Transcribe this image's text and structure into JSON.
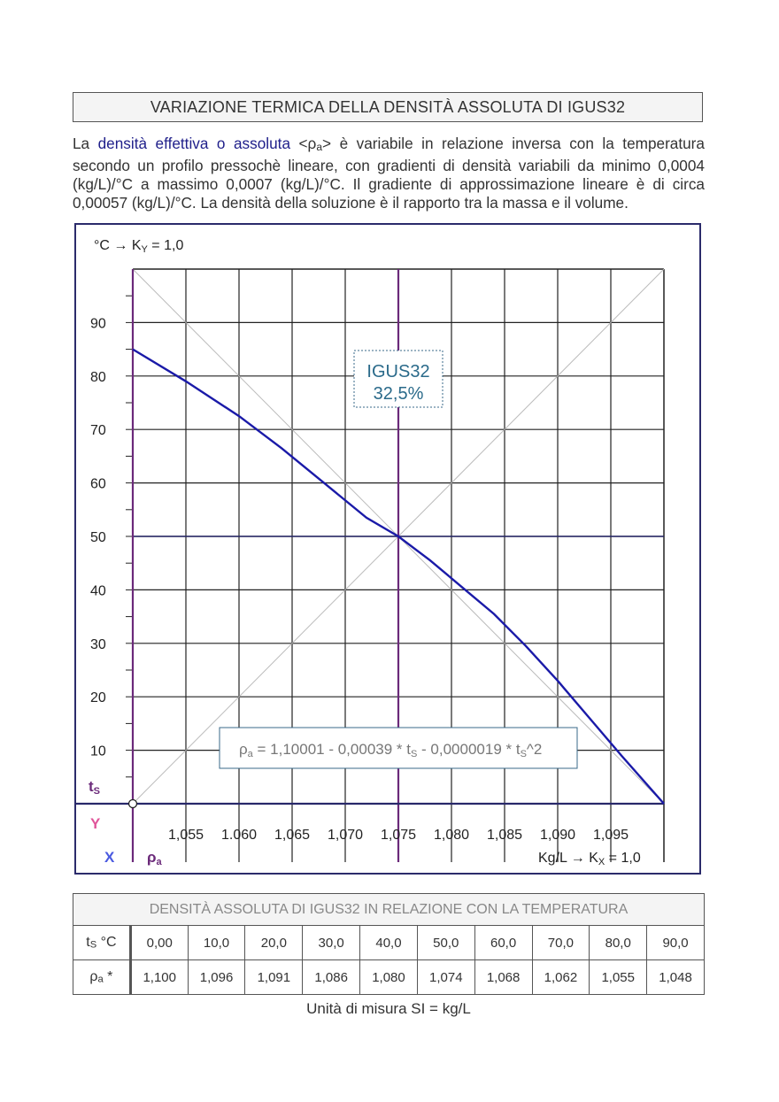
{
  "title": "VARIAZIONE TERMICA DELLA DENSITÀ ASSOLUTA DI IGUS32",
  "intro": {
    "p1": "La ",
    "highlight": "densità effettiva o assoluta",
    "p2": " <ρ",
    "p2_sub": "a",
    "p3": "> è variabile in relazione inversa con la temperatura secondo un profilo pressochè lineare, con gradienti di densità variabili da minimo 0,0004 (kg/L)/°C a massimo 0,0007 (kg/L)/°C. Il gradiente di approssimazione lineare è di circa 0,00057 (kg/L)/°C. La densità della soluzione è il rapporto tra la massa e il volume."
  },
  "chart_data": {
    "type": "line",
    "y_axis_header": "°C  →  K",
    "y_axis_header_sub": "Y",
    "y_axis_header_tail": " = 1,0",
    "x_axis_footer": "Kg/L  →  K",
    "x_axis_footer_sub": "X",
    "x_axis_footer_tail": " = 1,0",
    "y_label": "t",
    "y_label_sub": "S",
    "x_label": "ρ",
    "x_label_sub": "a",
    "corner_y": "Y",
    "corner_x": "X",
    "ylim": [
      0,
      100
    ],
    "xlim": [
      1.05,
      1.1
    ],
    "y_ticks": [
      10,
      20,
      30,
      40,
      50,
      60,
      70,
      80,
      90
    ],
    "x_ticks": [
      "1,055",
      "1.060",
      "1,065",
      "1,070",
      "1,075",
      "1,080",
      "1,085",
      "1,090",
      "1,095"
    ],
    "x_tick_values": [
      1.055,
      1.06,
      1.065,
      1.07,
      1.075,
      1.08,
      1.085,
      1.09,
      1.095
    ],
    "grid": true,
    "highlight_x": 1.075,
    "highlight_y": 50,
    "legend_box": {
      "line1": "IGUS32",
      "line2": "32,5%"
    },
    "formula": {
      "a": "ρ",
      "a_sub": "a",
      "b": " = 1,10001 - 0,00039 * t",
      "b_sub": "S",
      "c": " - 0,0000019 * t",
      "c_sub": "S",
      "d": "^2"
    },
    "series": [
      {
        "x": [
          1.05,
          1.055,
          1.06,
          1.064,
          1.068,
          1.072,
          1.075,
          1.078,
          1.081,
          1.084,
          1.087,
          1.09,
          1.093,
          1.096,
          1.1
        ],
        "y": [
          85,
          79,
          72.5,
          66.5,
          60,
          53.5,
          50,
          45.5,
          40.5,
          35.5,
          29.5,
          23,
          16,
          9,
          0
        ]
      }
    ],
    "colors": {
      "curve": "#1a1aa8",
      "purple": "#6b2a7a",
      "accent_y": "#e0559a",
      "accent_x": "#4a5ae0",
      "box_text": "#2a6a8a"
    }
  },
  "table": {
    "caption": "DENSITÀ ASSOLUTA DI IGUS32 IN RELAZIONE CON LA TEMPERATURA",
    "row1_head": "t",
    "row1_head_sub": "S",
    "row1_head_tail": " °C",
    "row2_head": "ρ",
    "row2_head_sub": "a",
    "row2_head_tail": " *",
    "temps": [
      "0,00",
      "10,0",
      "20,0",
      "30,0",
      "40,0",
      "50,0",
      "60,0",
      "70,0",
      "80,0",
      "90,0"
    ],
    "densities": [
      "1,100",
      "1,096",
      "1,091",
      "1,086",
      "1,080",
      "1,074",
      "1,068",
      "1,062",
      "1,055",
      "1,048"
    ]
  },
  "units": "Unità di misura SI = kg/L"
}
